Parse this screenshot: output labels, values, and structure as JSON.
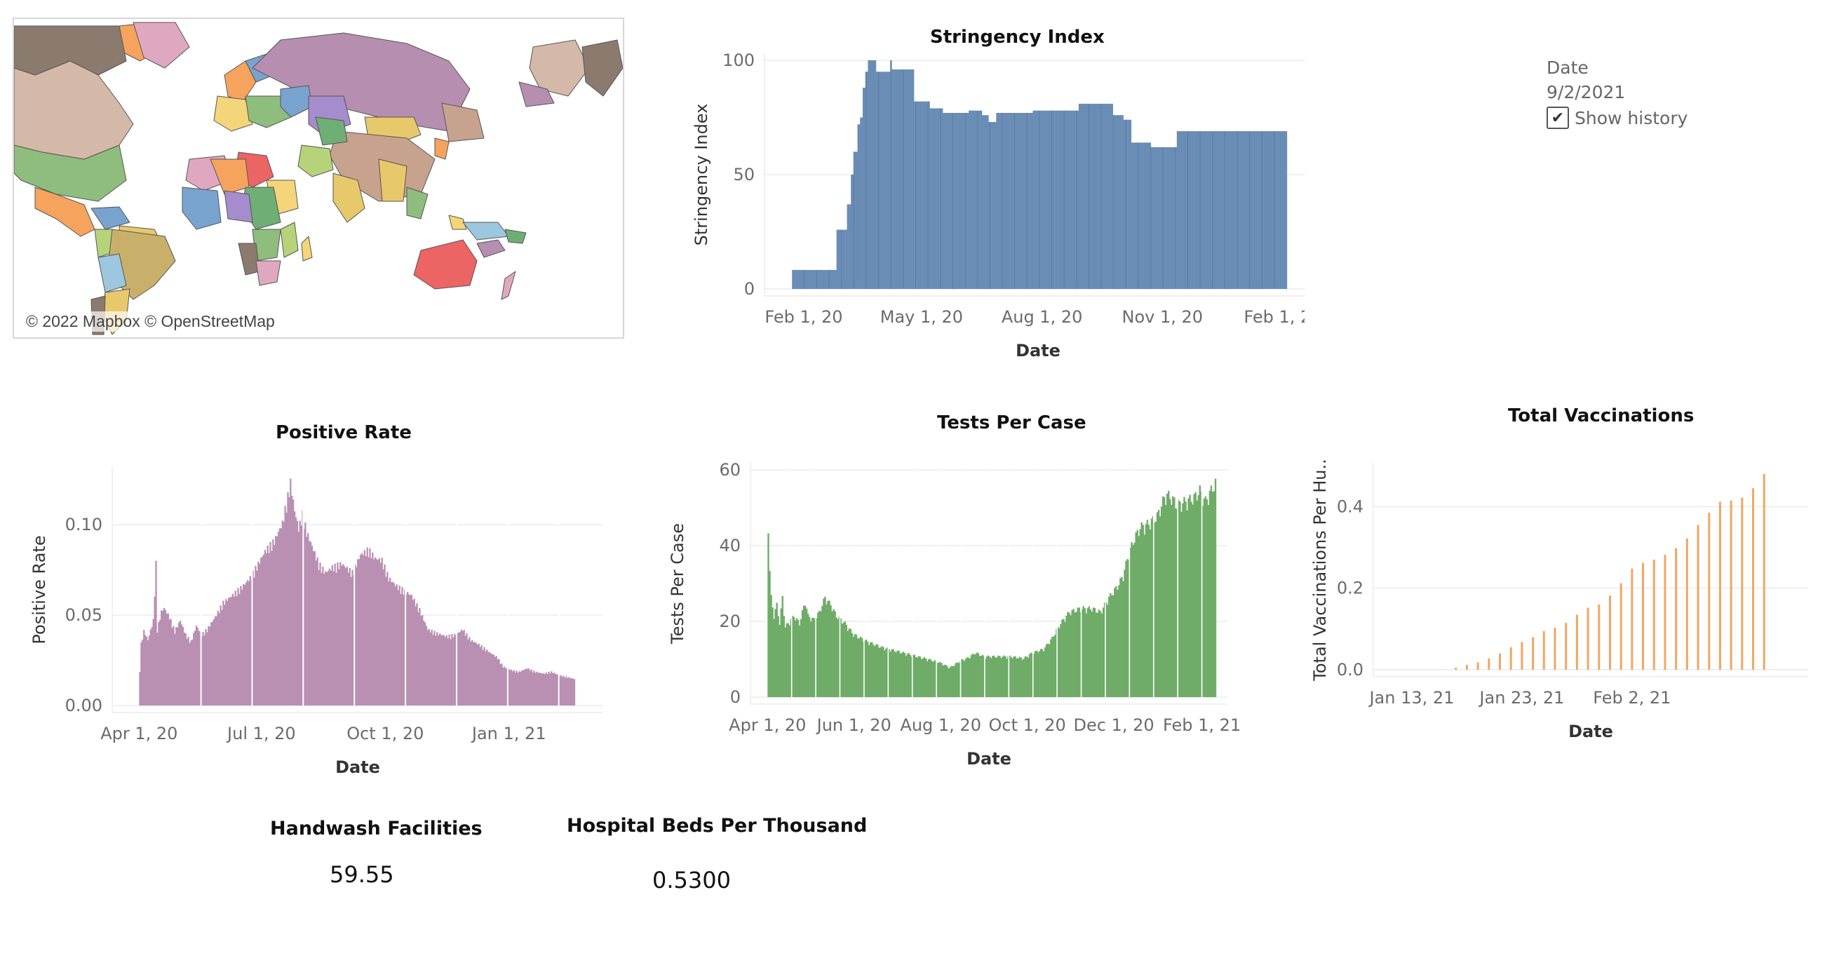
{
  "map": {
    "attribution": "© 2022 Mapbox © OpenStreetMap",
    "colors": [
      "#b68eaf",
      "#d4b9a9",
      "#8fbd7d",
      "#e0a8c0",
      "#f6a35d",
      "#c9b06a",
      "#79a3cf",
      "#ec6464",
      "#b6d37a",
      "#f5d57a",
      "#9cc7de",
      "#8a7b6e",
      "#6fae74",
      "#c7a28d",
      "#a58ccc",
      "#e7c86a"
    ]
  },
  "date_filter": {
    "label": "Date",
    "value": "9/2/2021",
    "show_history_label": "Show history",
    "show_history_checked": true,
    "checkmark": "✔"
  },
  "stringency": {
    "title": "Stringency Index",
    "color": "#6a8db5"
  },
  "positive_rate": {
    "title": "Positive Rate",
    "color": "#b990b2"
  },
  "tests_per_case": {
    "title": "Tests Per Case",
    "color": "#6fac68"
  },
  "vaccinations": {
    "title": "Total Vaccinations",
    "color": "#f2a662"
  },
  "handwash": {
    "title": "Handwash Facilities",
    "value": "59.55"
  },
  "hospital_beds": {
    "title": "Hospital Beds Per Thousand",
    "value": "0.5300"
  },
  "chart_data": [
    {
      "id": "stringency",
      "type": "area",
      "title": "Stringency Index",
      "xlabel": "Date",
      "ylabel": "Stringency Index",
      "xticks": [
        "Feb 1, 20",
        "May 1, 20",
        "Aug 1, 20",
        "Nov 1, 20",
        "Feb 1, 21"
      ],
      "xtick_days": [
        0,
        90,
        182,
        274,
        366
      ],
      "yticks": [
        0,
        50,
        100
      ],
      "ylim": [
        0,
        100
      ],
      "xlim_days": [
        -30,
        388
      ],
      "grid": true,
      "points": [
        [
          -10,
          0
        ],
        [
          -9,
          8.3
        ],
        [
          -6,
          8.3
        ],
        [
          8,
          8.3
        ],
        [
          24,
          8.3
        ],
        [
          25,
          25.9
        ],
        [
          31,
          25.9
        ],
        [
          33,
          37
        ],
        [
          36,
          50
        ],
        [
          38,
          60
        ],
        [
          41,
          72
        ],
        [
          43,
          75
        ],
        [
          45,
          88
        ],
        [
          47,
          95
        ],
        [
          49,
          100
        ],
        [
          54,
          100
        ],
        [
          55,
          95
        ],
        [
          66,
          100
        ],
        [
          67,
          96
        ],
        [
          78,
          96
        ],
        [
          84,
          82
        ],
        [
          95,
          82
        ],
        [
          96,
          79
        ],
        [
          106,
          77
        ],
        [
          126,
          78
        ],
        [
          136,
          76
        ],
        [
          141,
          73
        ],
        [
          147,
          77
        ],
        [
          170,
          77
        ],
        [
          175,
          78
        ],
        [
          200,
          78
        ],
        [
          210,
          81
        ],
        [
          230,
          81
        ],
        [
          236,
          76
        ],
        [
          244,
          74
        ],
        [
          250,
          64
        ],
        [
          264,
          64
        ],
        [
          265,
          62
        ],
        [
          278,
          62
        ],
        [
          285,
          69
        ],
        [
          364,
          69
        ],
        [
          369,
          69
        ]
      ],
      "n_bars": 40
    },
    {
      "id": "positive_rate",
      "type": "bar",
      "title": "Positive Rate",
      "xlabel": "Date",
      "ylabel": "Positive Rate",
      "xticks": [
        "Apr 1, 20",
        "Jul 1, 20",
        "Oct 1, 20",
        "Jan 1, 21"
      ],
      "xtick_days": [
        0,
        91,
        183,
        275
      ],
      "yticks": [
        0.0,
        0.05,
        0.1
      ],
      "ytick_labels": [
        "0.00",
        "0.05",
        "0.10"
      ],
      "ylim": [
        0,
        0.128
      ],
      "xlim_days": [
        -20,
        345
      ],
      "grid": true,
      "points": [
        [
          0,
          0.02
        ],
        [
          1,
          0.035
        ],
        [
          3,
          0.042
        ],
        [
          6,
          0.037
        ],
        [
          10,
          0.048
        ],
        [
          12,
          0.08
        ],
        [
          13,
          0.043
        ],
        [
          16,
          0.053
        ],
        [
          18,
          0.055
        ],
        [
          22,
          0.05
        ],
        [
          26,
          0.042
        ],
        [
          30,
          0.048
        ],
        [
          34,
          0.04
        ],
        [
          38,
          0.036
        ],
        [
          42,
          0.045
        ],
        [
          46,
          0.04
        ],
        [
          50,
          0.043
        ],
        [
          56,
          0.05
        ],
        [
          62,
          0.058
        ],
        [
          70,
          0.063
        ],
        [
          76,
          0.067
        ],
        [
          82,
          0.072
        ],
        [
          88,
          0.08
        ],
        [
          93,
          0.087
        ],
        [
          100,
          0.093
        ],
        [
          106,
          0.103
        ],
        [
          110,
          0.118
        ],
        [
          112,
          0.126
        ],
        [
          115,
          0.11
        ],
        [
          118,
          0.1
        ],
        [
          121,
          0.108
        ],
        [
          124,
          0.098
        ],
        [
          128,
          0.09
        ],
        [
          133,
          0.08
        ],
        [
          138,
          0.075
        ],
        [
          143,
          0.078
        ],
        [
          150,
          0.08
        ],
        [
          158,
          0.075
        ],
        [
          164,
          0.085
        ],
        [
          170,
          0.088
        ],
        [
          175,
          0.083
        ],
        [
          180,
          0.082
        ],
        [
          185,
          0.072
        ],
        [
          190,
          0.068
        ],
        [
          196,
          0.065
        ],
        [
          202,
          0.062
        ],
        [
          208,
          0.054
        ],
        [
          214,
          0.043
        ],
        [
          220,
          0.041
        ],
        [
          228,
          0.039
        ],
        [
          235,
          0.04
        ],
        [
          240,
          0.043
        ],
        [
          246,
          0.037
        ],
        [
          253,
          0.034
        ],
        [
          260,
          0.03
        ],
        [
          266,
          0.027
        ],
        [
          270,
          0.022
        ],
        [
          276,
          0.02
        ],
        [
          282,
          0.019
        ],
        [
          288,
          0.021
        ],
        [
          294,
          0.019
        ],
        [
          300,
          0.018
        ],
        [
          306,
          0.019
        ],
        [
          312,
          0.017
        ],
        [
          318,
          0.016
        ],
        [
          323,
          0.015
        ]
      ],
      "n_bars": 324,
      "gaps": 8
    },
    {
      "id": "tests_per_case",
      "type": "bar",
      "title": "Tests Per Case",
      "xlabel": "Date",
      "ylabel": "Tests Per Case",
      "xticks": [
        "Apr 1, 20",
        "Jun 1, 20",
        "Aug 1, 20",
        "Oct 1, 20",
        "Dec 1, 20",
        "Feb 1, 21"
      ],
      "xtick_days": [
        0,
        61,
        122,
        183,
        244,
        306
      ],
      "yticks": [
        0,
        20,
        40,
        60
      ],
      "ylim": [
        0,
        60
      ],
      "xlim_days": [
        -12,
        324
      ],
      "grid": true,
      "points": [
        [
          0,
          47
        ],
        [
          1,
          34
        ],
        [
          2,
          27
        ],
        [
          4,
          22
        ],
        [
          6,
          25
        ],
        [
          8,
          20
        ],
        [
          10,
          27
        ],
        [
          12,
          19
        ],
        [
          14,
          20
        ],
        [
          18,
          22
        ],
        [
          22,
          20
        ],
        [
          26,
          26
        ],
        [
          28,
          22
        ],
        [
          32,
          21
        ],
        [
          36,
          23
        ],
        [
          40,
          27
        ],
        [
          44,
          25
        ],
        [
          48,
          22
        ],
        [
          54,
          20
        ],
        [
          60,
          17
        ],
        [
          70,
          15
        ],
        [
          80,
          13.5
        ],
        [
          90,
          12.5
        ],
        [
          100,
          11.5
        ],
        [
          110,
          10.5
        ],
        [
          120,
          9.5
        ],
        [
          128,
          8
        ],
        [
          132,
          9
        ],
        [
          136,
          10
        ],
        [
          140,
          10.5
        ],
        [
          146,
          12
        ],
        [
          152,
          11
        ],
        [
          160,
          11
        ],
        [
          170,
          11
        ],
        [
          180,
          10.5
        ],
        [
          186,
          12
        ],
        [
          194,
          13
        ],
        [
          200,
          16
        ],
        [
          206,
          20
        ],
        [
          212,
          23
        ],
        [
          220,
          24
        ],
        [
          228,
          24
        ],
        [
          234,
          23
        ],
        [
          240,
          27
        ],
        [
          246,
          30
        ],
        [
          250,
          33
        ],
        [
          254,
          39
        ],
        [
          258,
          43
        ],
        [
          262,
          46
        ],
        [
          268,
          47
        ],
        [
          274,
          49
        ],
        [
          280,
          55
        ],
        [
          284,
          54
        ],
        [
          288,
          52
        ],
        [
          294,
          53
        ],
        [
          300,
          54
        ],
        [
          304,
          56
        ],
        [
          308,
          53
        ],
        [
          312,
          56
        ],
        [
          315,
          58
        ]
      ],
      "n_bars": 316,
      "gaps": 18
    },
    {
      "id": "vaccinations",
      "type": "bar",
      "title": "Total Vaccinations",
      "xlabel": "Date",
      "ylabel": "Total Vaccinations Per Hu..",
      "xticks": [
        "Jan 13, 21",
        "Jan 23, 21",
        "Feb 2, 21"
      ],
      "xtick_days": [
        0,
        10,
        20
      ],
      "yticks": [
        0.0,
        0.2,
        0.4
      ],
      "ytick_labels": [
        "0.0",
        "0.2",
        "0.4"
      ],
      "ylim": [
        0,
        0.49
      ],
      "xlim_days": [
        -3.5,
        36
      ],
      "grid": true,
      "days": [
        4,
        5,
        6,
        7,
        8,
        9,
        10,
        11,
        12,
        13,
        14,
        15,
        16,
        17,
        18,
        19,
        20,
        21,
        22,
        23,
        24,
        25,
        26,
        27,
        28,
        29,
        30,
        31,
        32
      ],
      "values": [
        0.005,
        0.012,
        0.018,
        0.028,
        0.04,
        0.055,
        0.068,
        0.08,
        0.095,
        0.103,
        0.115,
        0.135,
        0.152,
        0.16,
        0.182,
        0.212,
        0.248,
        0.262,
        0.27,
        0.282,
        0.298,
        0.322,
        0.355,
        0.385,
        0.412,
        0.415,
        0.422,
        0.445,
        0.48
      ]
    }
  ]
}
